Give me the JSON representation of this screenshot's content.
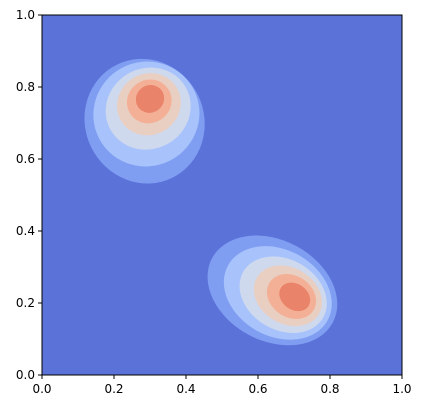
{
  "chart_data": {
    "type": "contour",
    "title": "",
    "xlabel": "",
    "ylabel": "",
    "xlim": [
      0.0,
      1.0
    ],
    "ylim": [
      0.0,
      1.0
    ],
    "xticks": [
      "0.0",
      "0.2",
      "0.4",
      "0.6",
      "0.8",
      "1.0"
    ],
    "yticks": [
      "0.0",
      "0.2",
      "0.4",
      "0.6",
      "0.8",
      "1.0"
    ],
    "grid": false,
    "legend": "none",
    "colormap": "coolwarm",
    "level_colors": [
      "#5b72d9",
      "#7f9ef2",
      "#a8c2fb",
      "#cfd9ee",
      "#e8cfc2",
      "#f4b096",
      "#e9836a",
      "#cf453d"
    ],
    "peaks": [
      {
        "label": "upper-left",
        "center": [
          0.3,
          0.77
        ],
        "contours": [
          {
            "level": 1,
            "rx": 0.165,
            "ry": 0.175,
            "cx": 0.285,
            "cy": 0.705,
            "rotate": -26
          },
          {
            "level": 2,
            "rx": 0.148,
            "ry": 0.145,
            "cx": 0.29,
            "cy": 0.725,
            "rotate": -28
          },
          {
            "level": 3,
            "rx": 0.12,
            "ry": 0.112,
            "cx": 0.295,
            "cy": 0.74,
            "rotate": -30
          },
          {
            "level": 4,
            "rx": 0.09,
            "ry": 0.085,
            "cx": 0.297,
            "cy": 0.752,
            "rotate": -32
          },
          {
            "level": 5,
            "rx": 0.063,
            "ry": 0.06,
            "cx": 0.298,
            "cy": 0.76,
            "rotate": -34
          },
          {
            "level": 6,
            "rx": 0.04,
            "ry": 0.038,
            "cx": 0.3,
            "cy": 0.767,
            "rotate": -36
          }
        ]
      },
      {
        "label": "lower-right",
        "center": [
          0.7,
          0.22
        ],
        "contours": [
          {
            "level": 1,
            "rx": 0.19,
            "ry": 0.14,
            "cx": 0.64,
            "cy": 0.235,
            "rotate": 28
          },
          {
            "level": 2,
            "rx": 0.158,
            "ry": 0.12,
            "cx": 0.655,
            "cy": 0.228,
            "rotate": 29
          },
          {
            "level": 3,
            "rx": 0.128,
            "ry": 0.098,
            "cx": 0.67,
            "cy": 0.223,
            "rotate": 30
          },
          {
            "level": 4,
            "rx": 0.1,
            "ry": 0.078,
            "cx": 0.683,
            "cy": 0.22,
            "rotate": 31
          },
          {
            "level": 5,
            "rx": 0.072,
            "ry": 0.058,
            "cx": 0.693,
            "cy": 0.218,
            "rotate": 33
          },
          {
            "level": 6,
            "rx": 0.046,
            "ry": 0.036,
            "cx": 0.702,
            "cy": 0.217,
            "rotate": 35
          }
        ]
      }
    ]
  }
}
